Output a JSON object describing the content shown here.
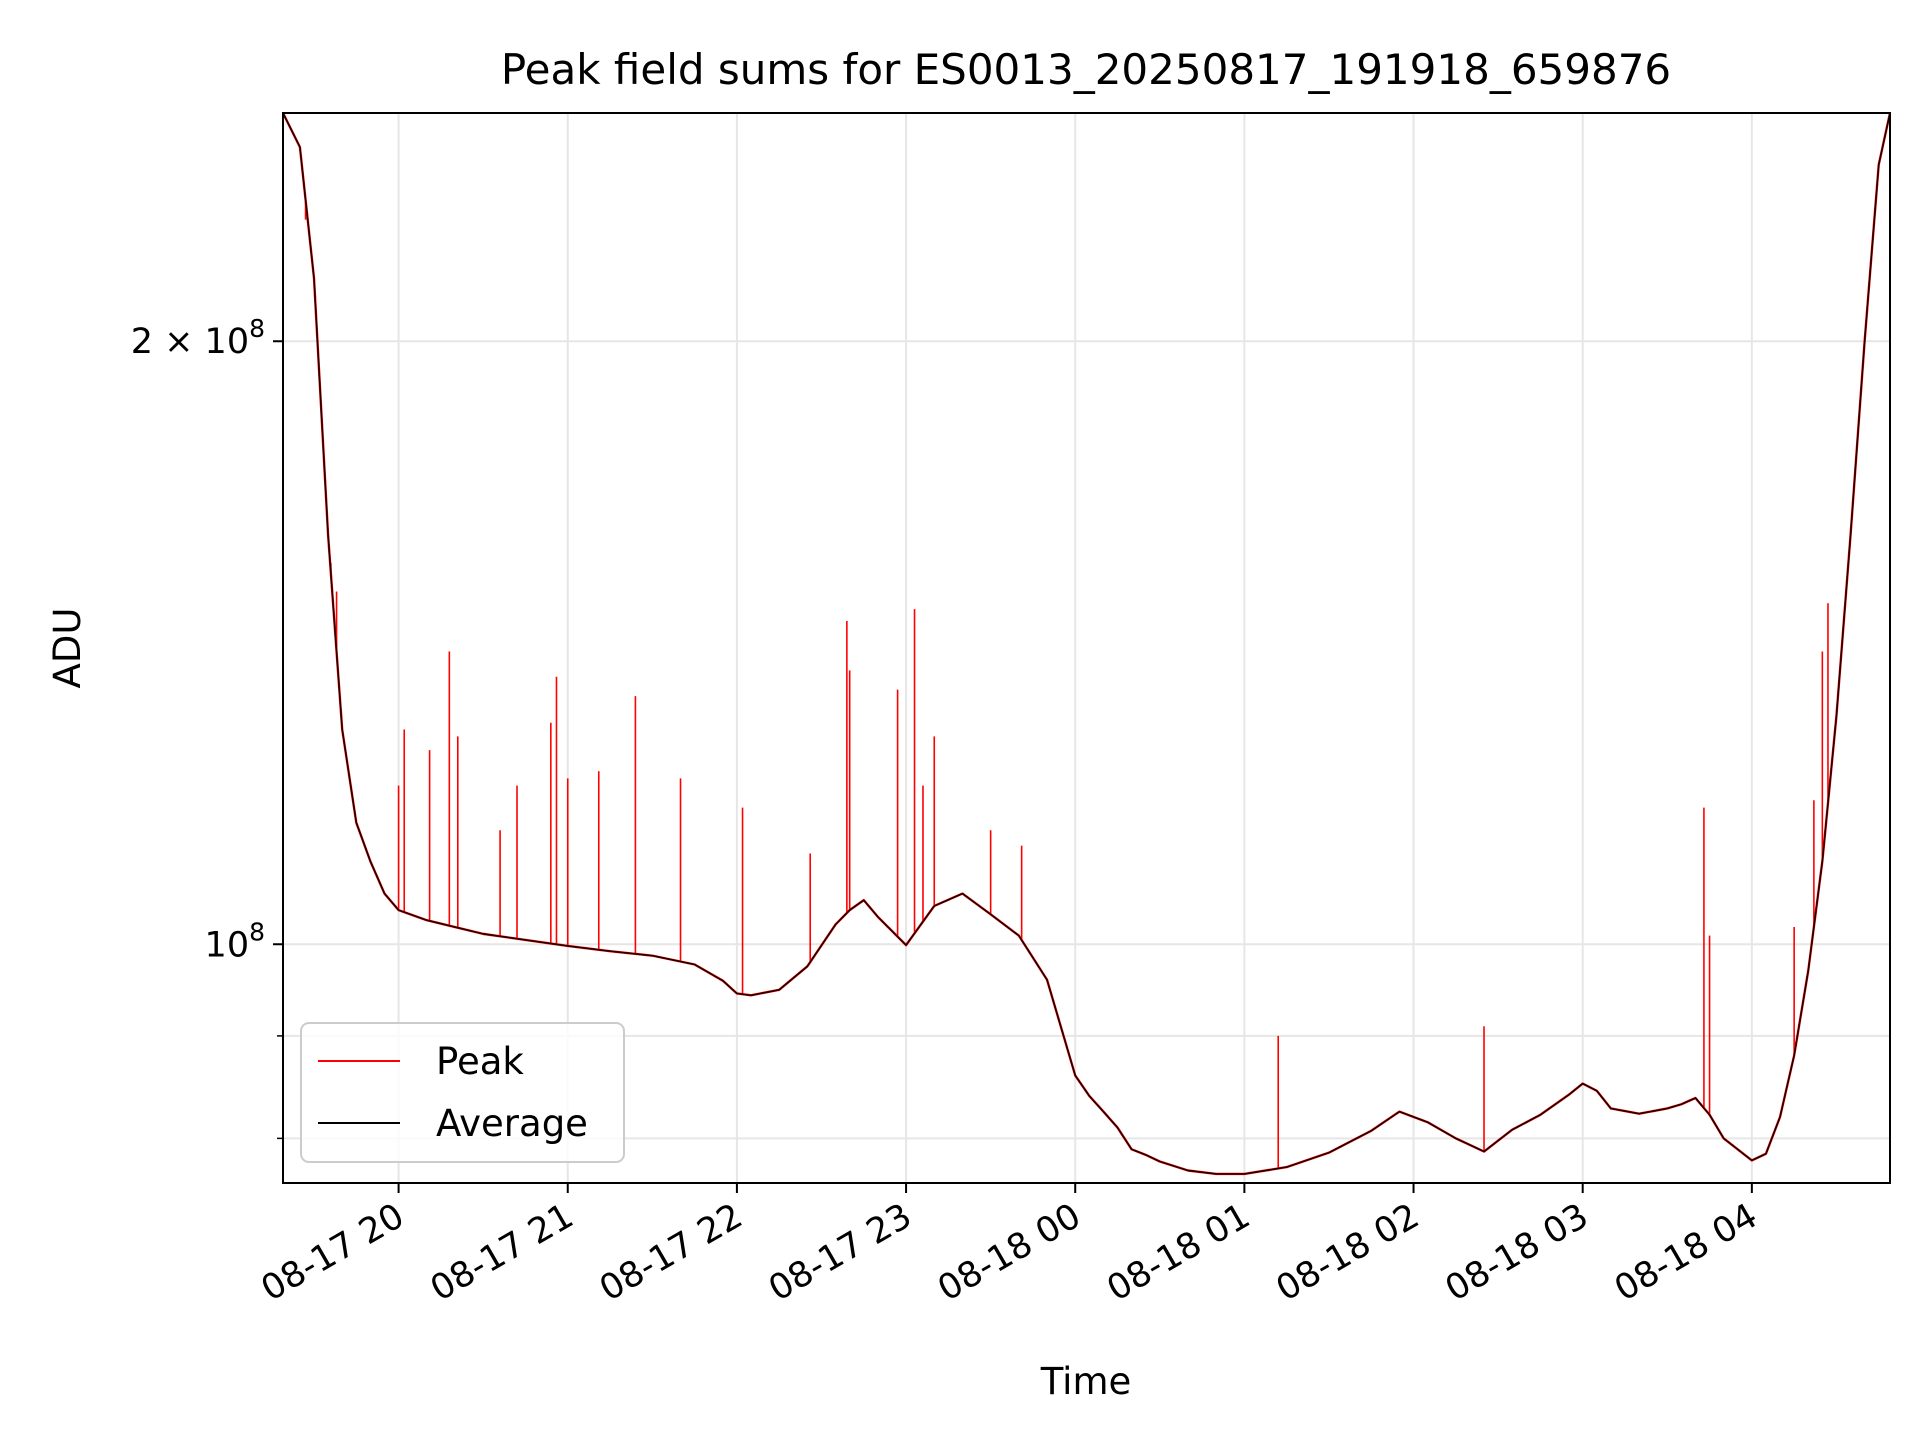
{
  "chart_data": {
    "type": "line",
    "title": "Peak field sums for ES0013_20250817_191918_659876",
    "xlabel": "Time",
    "ylabel": "ADU",
    "yscale": "log",
    "ylim": [
      76000000,
      260000000
    ],
    "xlim": [
      "2025-08-17 19:19",
      "2025-08-18 04:49"
    ],
    "grid": true,
    "legend_position": "lower-left",
    "x_ticks": [
      "2025-08-17 20:00",
      "2025-08-17 21:00",
      "2025-08-17 22:00",
      "2025-08-17 23:00",
      "2025-08-18 00:00",
      "2025-08-18 01:00",
      "2025-08-18 02:00",
      "2025-08-18 03:00",
      "2025-08-18 04:00"
    ],
    "x_tick_labels": [
      "08-17 20",
      "08-17 21",
      "08-17 22",
      "08-17 23",
      "08-18 00",
      "08-18 01",
      "08-18 02",
      "08-18 03",
      "08-18 04"
    ],
    "y_ticks": [
      {
        "value": 100000000,
        "base": "10",
        "exp": "8",
        "mult": ""
      },
      {
        "value": 200000000,
        "base": "10",
        "exp": "8",
        "mult": "2 × "
      }
    ],
    "y_minor_ticks": [
      80000000,
      90000000
    ],
    "series": [
      {
        "name": "Average",
        "color": "#000000",
        "x": [
          "2025-08-17 19:19",
          "2025-08-17 19:25",
          "2025-08-17 19:30",
          "2025-08-17 19:35",
          "2025-08-17 19:40",
          "2025-08-17 19:45",
          "2025-08-17 19:50",
          "2025-08-17 19:55",
          "2025-08-17 20:00",
          "2025-08-17 20:10",
          "2025-08-17 20:20",
          "2025-08-17 20:30",
          "2025-08-17 20:45",
          "2025-08-17 21:00",
          "2025-08-17 21:15",
          "2025-08-17 21:30",
          "2025-08-17 21:45",
          "2025-08-17 21:55",
          "2025-08-17 22:00",
          "2025-08-17 22:05",
          "2025-08-17 22:15",
          "2025-08-17 22:25",
          "2025-08-17 22:35",
          "2025-08-17 22:40",
          "2025-08-17 22:45",
          "2025-08-17 22:50",
          "2025-08-17 23:00",
          "2025-08-17 23:10",
          "2025-08-17 23:20",
          "2025-08-17 23:30",
          "2025-08-17 23:40",
          "2025-08-17 23:50",
          "2025-08-18 00:00",
          "2025-08-18 00:05",
          "2025-08-18 00:10",
          "2025-08-18 00:15",
          "2025-08-18 00:20",
          "2025-08-18 00:25",
          "2025-08-18 00:30",
          "2025-08-18 00:40",
          "2025-08-18 00:50",
          "2025-08-18 01:00",
          "2025-08-18 01:15",
          "2025-08-18 01:30",
          "2025-08-18 01:45",
          "2025-08-18 01:55",
          "2025-08-18 02:05",
          "2025-08-18 02:15",
          "2025-08-18 02:25",
          "2025-08-18 02:35",
          "2025-08-18 02:45",
          "2025-08-18 02:55",
          "2025-08-18 03:00",
          "2025-08-18 03:05",
          "2025-08-18 03:10",
          "2025-08-18 03:20",
          "2025-08-18 03:30",
          "2025-08-18 03:35",
          "2025-08-18 03:40",
          "2025-08-18 03:45",
          "2025-08-18 03:50",
          "2025-08-18 04:00",
          "2025-08-18 04:05",
          "2025-08-18 04:10",
          "2025-08-18 04:15",
          "2025-08-18 04:20",
          "2025-08-18 04:25",
          "2025-08-18 04:30",
          "2025-08-18 04:35",
          "2025-08-18 04:40",
          "2025-08-18 04:45",
          "2025-08-18 04:49"
        ],
        "y": [
          260000000,
          250000000,
          215000000,
          160000000,
          128000000,
          115000000,
          110000000,
          106000000,
          104000000,
          102800000,
          102000000,
          101200000,
          100500000,
          99800000,
          99200000,
          98700000,
          97700000,
          95900000,
          94500000,
          94300000,
          94900000,
          97500000,
          102300000,
          104000000,
          105200000,
          103200000,
          99900000,
          104500000,
          106000000,
          103500000,
          101000000,
          96000000,
          86000000,
          84000000,
          82500000,
          81000000,
          79000000,
          78500000,
          77900000,
          77100000,
          76800000,
          76800000,
          77400000,
          78700000,
          80700000,
          82500000,
          81500000,
          80000000,
          78800000,
          80800000,
          82200000,
          84100000,
          85200000,
          84500000,
          82800000,
          82300000,
          82800000,
          83200000,
          83800000,
          82200000,
          80000000,
          78000000,
          78600000,
          82000000,
          88000000,
          97000000,
          110000000,
          130000000,
          160000000,
          200000000,
          245000000,
          260000000
        ]
      },
      {
        "name": "Peak",
        "color": "#ff0000",
        "spikes": [
          {
            "x": "2025-08-17 19:27",
            "y": 230000000
          },
          {
            "x": "2025-08-17 19:36",
            "y": 155000000
          },
          {
            "x": "2025-08-17 19:38",
            "y": 150000000
          },
          {
            "x": "2025-08-17 20:00",
            "y": 120000000
          },
          {
            "x": "2025-08-17 20:02",
            "y": 128000000
          },
          {
            "x": "2025-08-17 20:11",
            "y": 125000000
          },
          {
            "x": "2025-08-17 20:18",
            "y": 140000000
          },
          {
            "x": "2025-08-17 20:21",
            "y": 127000000
          },
          {
            "x": "2025-08-17 20:36",
            "y": 114000000
          },
          {
            "x": "2025-08-17 20:42",
            "y": 120000000
          },
          {
            "x": "2025-08-17 20:54",
            "y": 129000000
          },
          {
            "x": "2025-08-17 20:56",
            "y": 136000000
          },
          {
            "x": "2025-08-17 21:00",
            "y": 121000000
          },
          {
            "x": "2025-08-17 21:11",
            "y": 122000000
          },
          {
            "x": "2025-08-17 21:24",
            "y": 133000000
          },
          {
            "x": "2025-08-17 21:40",
            "y": 121000000
          },
          {
            "x": "2025-08-17 22:02",
            "y": 117000000
          },
          {
            "x": "2025-08-17 22:26",
            "y": 111000000
          },
          {
            "x": "2025-08-17 22:39",
            "y": 145000000
          },
          {
            "x": "2025-08-17 22:40",
            "y": 137000000
          },
          {
            "x": "2025-08-17 22:57",
            "y": 134000000
          },
          {
            "x": "2025-08-17 23:03",
            "y": 147000000
          },
          {
            "x": "2025-08-17 23:06",
            "y": 120000000
          },
          {
            "x": "2025-08-17 23:10",
            "y": 127000000
          },
          {
            "x": "2025-08-17 23:30",
            "y": 114000000
          },
          {
            "x": "2025-08-17 23:41",
            "y": 112000000
          },
          {
            "x": "2025-08-18 01:12",
            "y": 90000000
          },
          {
            "x": "2025-08-18 02:25",
            "y": 91000000
          },
          {
            "x": "2025-08-18 03:43",
            "y": 117000000
          },
          {
            "x": "2025-08-18 03:45",
            "y": 101000000
          },
          {
            "x": "2025-08-18 04:15",
            "y": 102000000
          },
          {
            "x": "2025-08-18 04:22",
            "y": 118000000
          },
          {
            "x": "2025-08-18 04:25",
            "y": 140000000
          },
          {
            "x": "2025-08-18 04:27",
            "y": 148000000
          }
        ]
      }
    ]
  },
  "legend": {
    "items": [
      {
        "label": "Peak",
        "color": "#ff0000"
      },
      {
        "label": "Average",
        "color": "#000000"
      }
    ]
  }
}
